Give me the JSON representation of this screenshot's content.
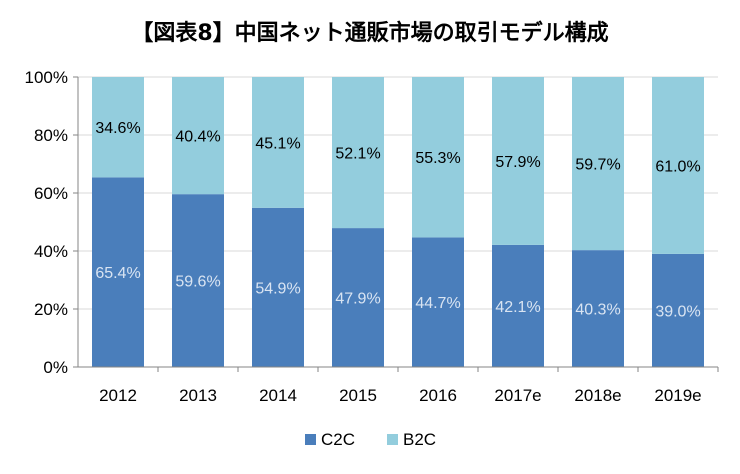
{
  "colors": {
    "c2c": "#4a7ebb",
    "b2c": "#93cddd",
    "axis": "#868686",
    "grid": "#d9d9d9",
    "c2c_label": "#d9e4f2",
    "b2c_label": "#000000"
  },
  "chart_data": {
    "type": "bar",
    "stacked": true,
    "percent": true,
    "title": "【図表8】中国ネット通販市場の取引モデル構成",
    "xlabel": "",
    "ylabel": "",
    "ylim": [
      0,
      100
    ],
    "y_ticks": [
      "0%",
      "20%",
      "40%",
      "60%",
      "80%",
      "100%"
    ],
    "categories": [
      "2012",
      "2013",
      "2014",
      "2015",
      "2016",
      "2017e",
      "2018e",
      "2019e"
    ],
    "series": [
      {
        "name": "C2C",
        "values": [
          65.4,
          59.6,
          54.9,
          47.9,
          44.7,
          42.1,
          40.3,
          39.0
        ],
        "labels": [
          "65.4%",
          "59.6%",
          "54.9%",
          "47.9%",
          "44.7%",
          "42.1%",
          "40.3%",
          "39.0%"
        ]
      },
      {
        "name": "B2C",
        "values": [
          34.6,
          40.4,
          45.1,
          52.1,
          55.3,
          57.9,
          59.7,
          61.0
        ],
        "labels": [
          "34.6%",
          "40.4%",
          "45.1%",
          "52.1%",
          "55.3%",
          "57.9%",
          "59.7%",
          "61.0%"
        ]
      }
    ],
    "legend": "bottom-center"
  }
}
